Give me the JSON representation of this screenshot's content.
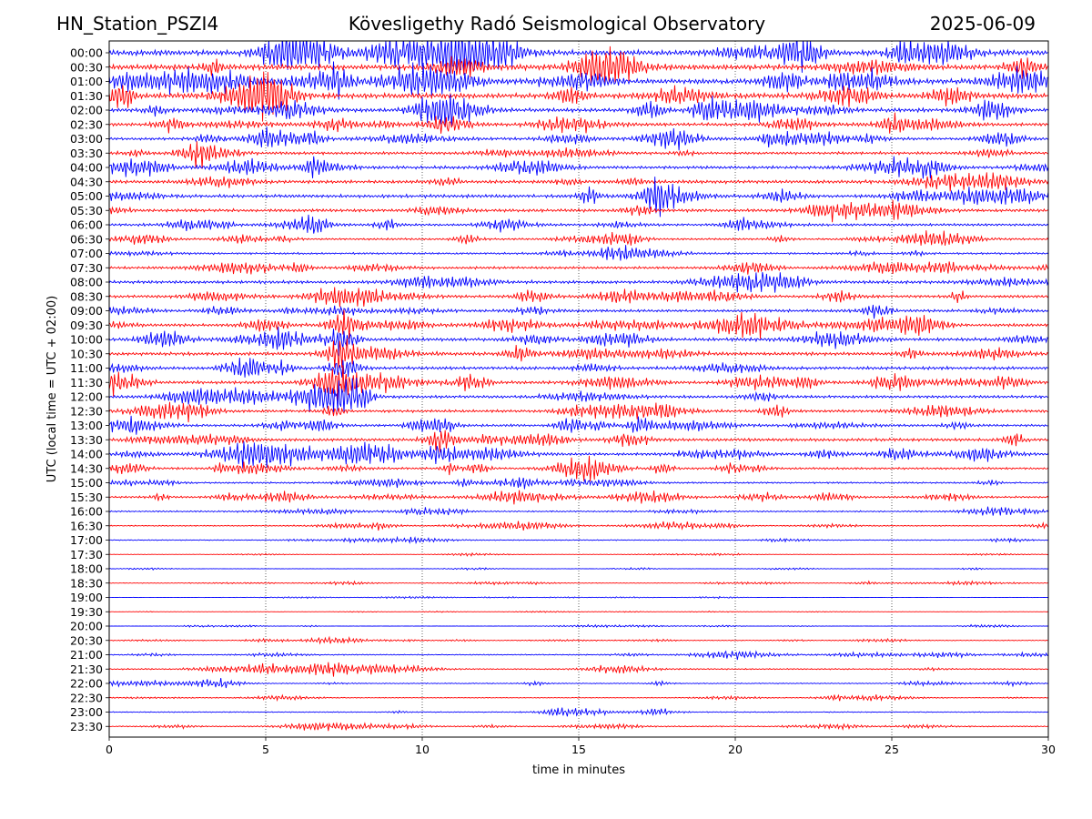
{
  "header": {
    "station": "HN_Station_PSZI4",
    "observatory": "Kövesligethy Radó Seismological Observatory",
    "date": "2025-06-09"
  },
  "chart_data": {
    "type": "line",
    "title": "Kövesligethy Radó Seismological Observatory",
    "xlabel": "time in minutes",
    "ylabel": "UTC (local time = UTC + 02:00)",
    "xlim": [
      0,
      30
    ],
    "x_ticks": [
      0,
      5,
      10,
      15,
      20,
      25,
      30
    ],
    "vertical_grid": "dotted at each x tick",
    "row_labels": [
      "00:00",
      "00:30",
      "01:00",
      "01:30",
      "02:00",
      "02:30",
      "03:00",
      "03:30",
      "04:00",
      "04:30",
      "05:00",
      "05:30",
      "06:00",
      "06:30",
      "07:00",
      "07:30",
      "08:00",
      "08:30",
      "09:00",
      "09:30",
      "10:00",
      "10:30",
      "11:00",
      "11:30",
      "12:00",
      "12:30",
      "13:00",
      "13:30",
      "14:00",
      "14:30",
      "15:00",
      "15:30",
      "16:00",
      "16:30",
      "17:00",
      "17:30",
      "18:00",
      "18:30",
      "19:00",
      "19:30",
      "20:00",
      "20:30",
      "21:00",
      "21:30",
      "22:00",
      "22:30",
      "23:00",
      "23:30"
    ],
    "trace_colors": [
      "#0000ff",
      "#ff0000"
    ],
    "relative_amplitude": [
      1.0,
      1.0,
      0.95,
      0.95,
      0.7,
      0.6,
      0.5,
      0.5,
      0.55,
      0.6,
      0.6,
      0.55,
      0.45,
      0.35,
      0.35,
      0.45,
      0.55,
      0.5,
      0.5,
      0.55,
      0.6,
      0.6,
      0.55,
      0.55,
      0.5,
      0.5,
      0.45,
      0.55,
      0.45,
      0.4,
      0.3,
      0.35,
      0.25,
      0.18,
      0.18,
      0.06,
      0.08,
      0.1,
      0.06,
      0.05,
      0.06,
      0.12,
      0.2,
      0.22,
      0.18,
      0.12,
      0.18,
      0.18
    ],
    "events": [
      {
        "row": 10,
        "minute": 17.5,
        "amp": 2.4
      },
      {
        "row": 12,
        "minute": 6.5,
        "amp": 1.8
      },
      {
        "row": 19,
        "minute": 7.5,
        "amp": 2.0
      },
      {
        "row": 20,
        "minute": 7.4,
        "amp": 2.0
      },
      {
        "row": 21,
        "minute": 7.4,
        "amp": 2.2
      },
      {
        "row": 22,
        "minute": 7.5,
        "amp": 2.0
      },
      {
        "row": 23,
        "minute": 7.4,
        "amp": 2.0
      },
      {
        "row": 24,
        "minute": 7.5,
        "amp": 1.6
      },
      {
        "row": 26,
        "minute": 10.6,
        "amp": 2.0
      },
      {
        "row": 27,
        "minute": 10.6,
        "amp": 2.0
      },
      {
        "row": 28,
        "minute": 10.6,
        "amp": 2.0
      },
      {
        "row": 29,
        "minute": 0.8,
        "amp": 0.8
      },
      {
        "row": 30,
        "minute": 1.8,
        "amp": 0.6
      },
      {
        "row": 34,
        "minute": 7.7,
        "amp": 0.8
      },
      {
        "row": 40,
        "minute": 19.5,
        "amp": 0.8
      },
      {
        "row": 44,
        "minute": 0.3,
        "amp": 1.2
      }
    ]
  }
}
